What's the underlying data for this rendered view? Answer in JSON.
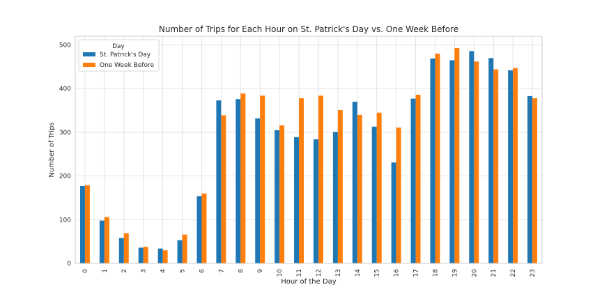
{
  "chart_data": {
    "type": "bar",
    "title": "Number of Trips for Each Hour on St. Patrick's Day vs. One Week Before",
    "xlabel": "Hour of the Day",
    "ylabel": "Number of Trips",
    "ylim": [
      0,
      520
    ],
    "yticks": [
      0,
      100,
      200,
      300,
      400,
      500
    ],
    "grid": true,
    "legend": {
      "title": "Day",
      "placement": "upper-left"
    },
    "categories": [
      "0",
      "1",
      "2",
      "3",
      "4",
      "5",
      "6",
      "7",
      "8",
      "9",
      "10",
      "11",
      "12",
      "13",
      "14",
      "15",
      "16",
      "17",
      "18",
      "19",
      "20",
      "21",
      "22",
      "23"
    ],
    "series": [
      {
        "name": "St. Patrick's Day",
        "color": "#1f77b4",
        "values": [
          177,
          98,
          58,
          36,
          34,
          53,
          154,
          373,
          376,
          332,
          305,
          289,
          284,
          301,
          370,
          313,
          231,
          377,
          469,
          465,
          486,
          470,
          442,
          383
        ]
      },
      {
        "name": "One Week Before",
        "color": "#ff7f0e",
        "values": [
          179,
          106,
          69,
          38,
          30,
          66,
          160,
          339,
          389,
          384,
          316,
          378,
          384,
          351,
          340,
          345,
          311,
          386,
          480,
          493,
          462,
          444,
          447,
          378
        ]
      }
    ]
  }
}
